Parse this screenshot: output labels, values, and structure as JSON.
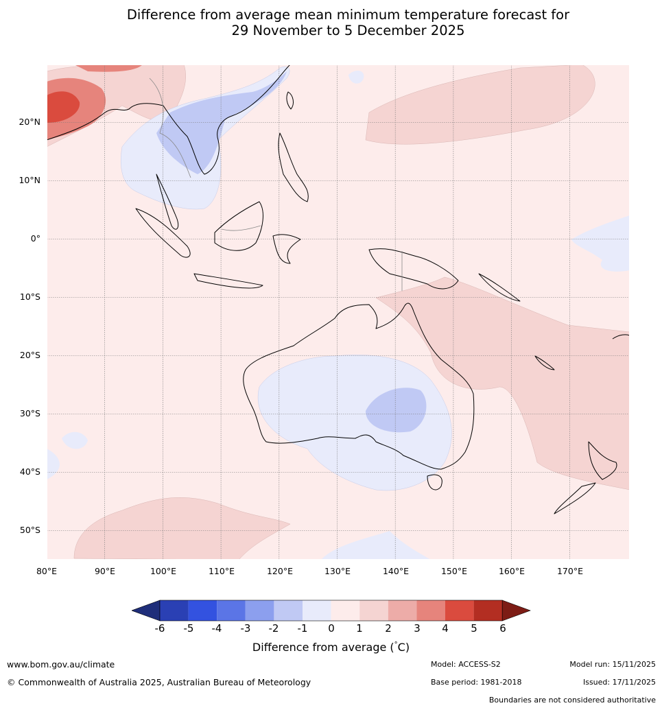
{
  "title": {
    "line1": "Difference from average mean minimum temperature forecast for",
    "line2": "29 November to 5 December 2025"
  },
  "map": {
    "lat_labels": [
      "20°N",
      "10°N",
      "0°",
      "10°S",
      "20°S",
      "30°S",
      "40°S",
      "50°S"
    ],
    "lon_labels": [
      "80°E",
      "90°E",
      "100°E",
      "110°E",
      "120°E",
      "130°E",
      "140°E",
      "150°E",
      "160°E",
      "170°E"
    ]
  },
  "colorbar": {
    "ticks": [
      "-6",
      "-5",
      "-4",
      "-3",
      "-2",
      "-1",
      "0",
      "1",
      "2",
      "3",
      "4",
      "5",
      "6"
    ],
    "colors": [
      "#1f2e7a",
      "#2a40b4",
      "#3352e0",
      "#5b75e6",
      "#8c9fee",
      "#c0c9f4",
      "#e8ebfb",
      "#fdeceb",
      "#f5d4d2",
      "#edaca8",
      "#e6847c",
      "#da4b3e",
      "#b32e22",
      "#7d1c15"
    ],
    "label": "Difference from average (°C)",
    "label_prefix": "Difference from average (",
    "label_degree": "°",
    "label_suffix": "C)"
  },
  "footer": {
    "website": "www.bom.gov.au/climate",
    "copyright": "© Commonwealth of Australia 2025, Australian Bureau of Meteorology",
    "model": "Model: ACCESS-S2",
    "base_period": "Base period: 1981-2018",
    "model_run": "Model run: 15/11/2025",
    "issued": "Issued: 17/11/2025",
    "disclaimer": "Boundaries are not considered authoritative"
  }
}
